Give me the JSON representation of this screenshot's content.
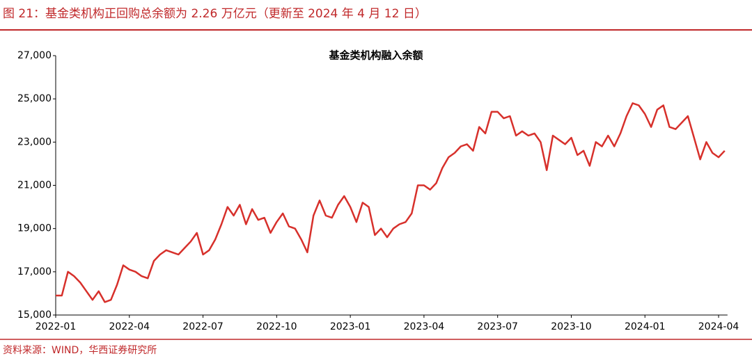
{
  "header": {
    "title": "图 21：基金类机构正回购总余额为 2.26 万亿元（更新至 2024 年 4 月 12 日）"
  },
  "footer": {
    "source": "资料来源：WIND，华西证券研究所"
  },
  "chart_data": {
    "type": "line",
    "title": "基金类机构融入余额",
    "categories": [
      "2022-01",
      null,
      null,
      null,
      null,
      null,
      null,
      null,
      null,
      null,
      null,
      null,
      "2022-04",
      null,
      null,
      null,
      null,
      null,
      null,
      null,
      null,
      null,
      null,
      null,
      "2022-07",
      null,
      null,
      null,
      null,
      null,
      null,
      null,
      null,
      null,
      null,
      null,
      "2022-10",
      null,
      null,
      null,
      null,
      null,
      null,
      null,
      null,
      null,
      null,
      null,
      "2023-01",
      null,
      null,
      null,
      null,
      null,
      null,
      null,
      null,
      null,
      null,
      null,
      "2023-04",
      null,
      null,
      null,
      null,
      null,
      null,
      null,
      null,
      null,
      null,
      null,
      "2023-07",
      null,
      null,
      null,
      null,
      null,
      null,
      null,
      null,
      null,
      null,
      null,
      "2023-10",
      null,
      null,
      null,
      null,
      null,
      null,
      null,
      null,
      null,
      null,
      null,
      "2024-01",
      null,
      null,
      null,
      null,
      null,
      null,
      null,
      null,
      null,
      null,
      null,
      "2024-04",
      null
    ],
    "series": [
      {
        "color": "#d7302b",
        "values": [
          15900,
          15900,
          17000,
          16800,
          16500,
          16100,
          15700,
          16100,
          15600,
          15700,
          16400,
          17300,
          17100,
          17000,
          16800,
          16700,
          17500,
          17800,
          18000,
          17900,
          17800,
          18100,
          18400,
          18800,
          17800,
          18000,
          18500,
          19200,
          20000,
          19600,
          20100,
          19200,
          19900,
          19400,
          19500,
          18800,
          19300,
          19700,
          19100,
          19000,
          18500,
          17900,
          19600,
          20300,
          19600,
          19500,
          20100,
          20500,
          20000,
          19300,
          20200,
          20000,
          18700,
          19000,
          18600,
          19000,
          19200,
          19300,
          19700,
          21000,
          21000,
          20800,
          21100,
          21800,
          22300,
          22500,
          22800,
          22900,
          22600,
          23700,
          23400,
          24400,
          24400,
          24100,
          24200,
          23300,
          23500,
          23300,
          23400,
          23000,
          21700,
          23300,
          23100,
          22900,
          23200,
          22400,
          22600,
          21900,
          23000,
          22800,
          23300,
          22800,
          23400,
          24200,
          24800,
          24700,
          24300,
          23700,
          24500,
          24700,
          23700,
          23600,
          23900,
          24200,
          23200,
          22200,
          23000,
          22500,
          22300,
          22600
        ]
      }
    ],
    "ylim": [
      15000,
      27000
    ],
    "yticks": [
      {
        "value": 15000,
        "label": "15,000"
      },
      {
        "value": 17000,
        "label": "17,000"
      },
      {
        "value": 19000,
        "label": "19,000"
      },
      {
        "value": 21000,
        "label": "21,000"
      },
      {
        "value": 23000,
        "label": "23,000"
      },
      {
        "value": 25000,
        "label": "25,000"
      },
      {
        "value": 27000,
        "label": "27,000"
      }
    ],
    "grid": false
  }
}
